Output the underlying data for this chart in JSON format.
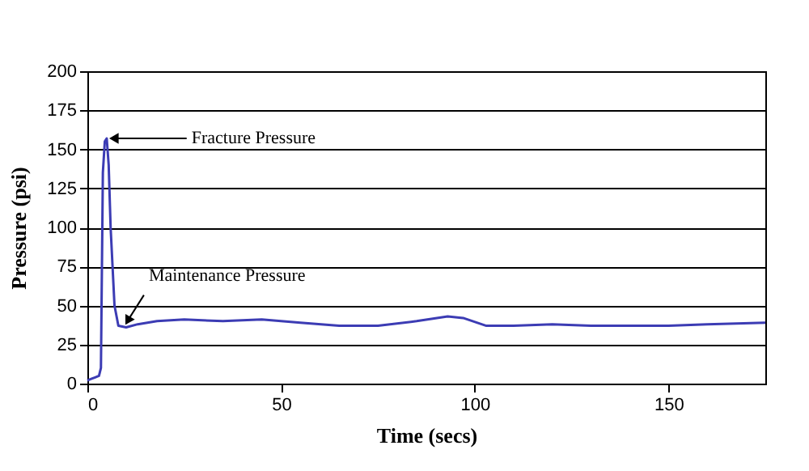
{
  "chart_data": {
    "type": "line",
    "xlabel": "Time (secs)",
    "ylabel": "Pressure (psi)",
    "xlim": [
      0,
      175
    ],
    "xticks": [
      0,
      50,
      100,
      150
    ],
    "ylim": [
      0,
      200
    ],
    "yticks": [
      0,
      25,
      50,
      75,
      100,
      125,
      150,
      175,
      200
    ],
    "grid": "y",
    "legend": false,
    "marker": "none",
    "line_style": "solid",
    "series": [
      {
        "color": "#3c3cb4",
        "x": [
          0,
          1,
          2,
          3,
          3.5,
          4,
          4.5,
          5,
          5.5,
          6,
          7,
          8,
          10,
          13,
          18,
          25,
          35,
          45,
          55,
          65,
          75,
          85,
          93,
          97,
          103,
          110,
          120,
          130,
          150,
          160,
          175
        ],
        "values": [
          2,
          3,
          4,
          5,
          10,
          135,
          155,
          157,
          140,
          100,
          50,
          37,
          36,
          38,
          40,
          41,
          40,
          41,
          39,
          37,
          37,
          40,
          43,
          42,
          37,
          37,
          38,
          37,
          37,
          38,
          39
        ]
      }
    ],
    "annotations": [
      {
        "text": "Fracture Pressure",
        "x": 6,
        "y": 157
      },
      {
        "text": "Maintenance Pressure",
        "x": 10,
        "y": 38
      }
    ]
  }
}
